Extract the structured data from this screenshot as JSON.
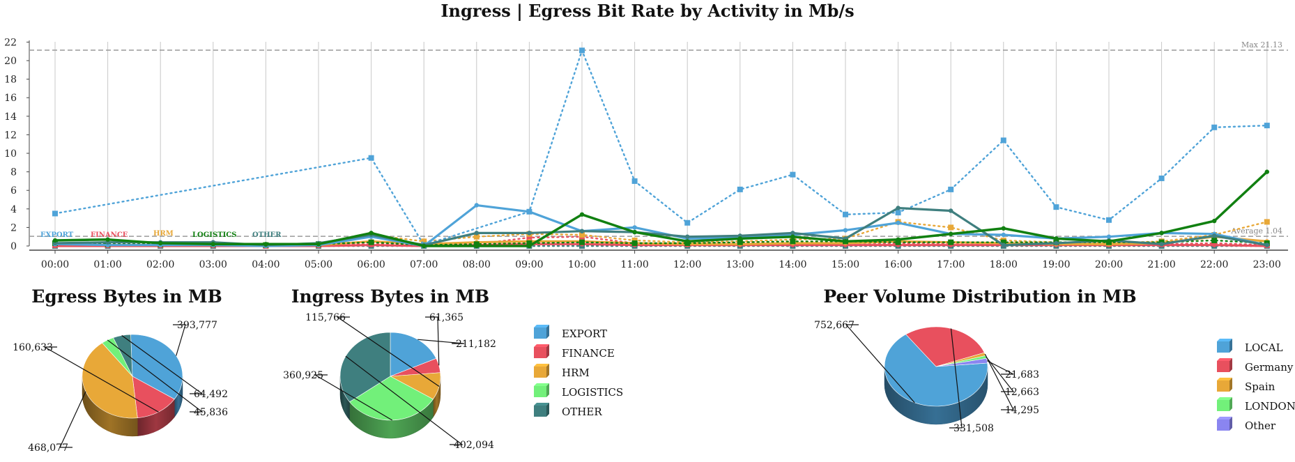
{
  "colors": {
    "EXPORT": "#4fa3d8",
    "FINANCE": "#e8505e",
    "HRM": "#e8a838",
    "LOGISTICS": "#72f07a",
    "OTHER": "#3f7f7f",
    "LOGISTICS_line": "#118011",
    "LOCAL": "#4fa3d8",
    "Germany": "#e8505e",
    "Spain": "#e8a838",
    "LONDON": "#72f07a",
    "Other": "#8a85f0"
  },
  "chart_data": [
    {
      "type": "line",
      "title": "Ingress | Egress Bit Rate by Activity in Mb/s",
      "xlabel": "",
      "ylabel": "",
      "ylim": [
        0,
        22
      ],
      "yticks": [
        0,
        2,
        4,
        6,
        8,
        10,
        12,
        14,
        16,
        18,
        20,
        22
      ],
      "grid": "vertical",
      "categories": [
        "00:00",
        "01:00",
        "02:00",
        "03:00",
        "04:00",
        "05:00",
        "06:00",
        "07:00",
        "08:00",
        "09:00",
        "10:00",
        "11:00",
        "12:00",
        "13:00",
        "14:00",
        "15:00",
        "16:00",
        "17:00",
        "18:00",
        "19:00",
        "20:00",
        "21:00",
        "22:00",
        "23:00"
      ],
      "legend_labels": [
        "EXPORT",
        "FINANCE",
        "HRM",
        "LOGISTICS",
        "OTHER"
      ],
      "max_line": {
        "label": "Max 21.13",
        "value": 21.13
      },
      "average_line": {
        "label": "Average 1.04",
        "value": 1.04
      },
      "series": [
        {
          "name": "EXPORT",
          "style": "dotted",
          "color_key": "EXPORT",
          "values": [
            3.5,
            null,
            null,
            null,
            null,
            null,
            9.5,
            0.1,
            null,
            3.7,
            21.1,
            7.0,
            2.5,
            6.1,
            7.7,
            3.4,
            3.6,
            6.1,
            11.4,
            4.2,
            2.8,
            7.3,
            12.8,
            13.0
          ]
        },
        {
          "name": "EXPORT",
          "style": "solid",
          "color_key": "EXPORT",
          "values": [
            0.2,
            0.1,
            0.1,
            0.1,
            0.0,
            0.1,
            1.0,
            0.0,
            4.4,
            3.7,
            1.6,
            2.0,
            0.8,
            0.9,
            1.2,
            1.7,
            2.5,
            1.3,
            1.2,
            0.8,
            1.0,
            1.4,
            1.3,
            0.1
          ]
        },
        {
          "name": "FINANCE",
          "style": "dotted",
          "color_key": "FINANCE",
          "values": [
            0.1,
            0.1,
            0.1,
            0.1,
            0.0,
            0.1,
            0.2,
            0.1,
            0.2,
            0.9,
            1.0,
            0.3,
            0.2,
            0.3,
            0.3,
            0.3,
            0.3,
            0.3,
            0.3,
            0.3,
            0.2,
            0.2,
            0.3,
            0.1
          ]
        },
        {
          "name": "FINANCE",
          "style": "solid",
          "color_key": "FINANCE",
          "values": [
            0.0,
            0.0,
            0.0,
            0.0,
            0.0,
            0.0,
            0.1,
            0.0,
            0.1,
            0.2,
            0.2,
            0.1,
            0.1,
            0.1,
            0.1,
            0.1,
            0.1,
            0.1,
            0.1,
            0.1,
            0.1,
            0.1,
            0.1,
            0.0
          ]
        },
        {
          "name": "HRM",
          "style": "dotted",
          "color_key": "HRM",
          "values": [
            0.3,
            0.2,
            0.2,
            0.2,
            0.1,
            0.2,
            1.2,
            0.5,
            1.0,
            1.3,
            1.2,
            0.6,
            0.4,
            0.5,
            0.7,
            0.8,
            2.6,
            2.0,
            0.6,
            0.4,
            0.3,
            0.5,
            1.2,
            2.6
          ]
        },
        {
          "name": "HRM",
          "style": "solid",
          "color_key": "HRM",
          "values": [
            0.2,
            0.1,
            0.1,
            0.1,
            0.0,
            0.1,
            0.5,
            0.2,
            0.4,
            0.5,
            0.5,
            0.3,
            0.2,
            0.2,
            0.3,
            0.3,
            0.5,
            0.4,
            0.3,
            0.2,
            0.2,
            0.3,
            1.0,
            0.5
          ]
        },
        {
          "name": "LOGISTICS",
          "style": "dotted",
          "color_key": "LOGISTICS_line",
          "values": [
            0.3,
            0.2,
            0.2,
            0.2,
            0.1,
            0.2,
            0.4,
            0.1,
            0.2,
            0.3,
            0.4,
            0.3,
            0.3,
            0.4,
            0.5,
            0.5,
            0.4,
            0.4,
            0.4,
            0.4,
            0.4,
            0.4,
            0.6,
            0.3
          ]
        },
        {
          "name": "LOGISTICS",
          "style": "solid",
          "color_key": "LOGISTICS_line",
          "values": [
            0.6,
            0.7,
            0.3,
            0.2,
            0.2,
            0.2,
            1.4,
            0.0,
            0.0,
            0.0,
            3.4,
            1.5,
            0.5,
            0.8,
            1.0,
            0.5,
            0.7,
            1.3,
            1.9,
            0.8,
            0.5,
            1.4,
            2.7,
            8.0
          ]
        },
        {
          "name": "OTHER",
          "style": "dotted",
          "color_key": "OTHER",
          "values": [
            0.0,
            0.0,
            0.0,
            0.0,
            0.0,
            0.0,
            0.0,
            0.0,
            0.0,
            0.0,
            0.0,
            0.0,
            0.0,
            0.0,
            0.0,
            0.0,
            0.0,
            0.0,
            0.0,
            0.0,
            0.0,
            0.0,
            0.0,
            0.0
          ]
        },
        {
          "name": "OTHER",
          "style": "solid",
          "color_key": "OTHER",
          "values": [
            0.3,
            0.4,
            0.4,
            0.4,
            0.1,
            0.3,
            1.2,
            0.1,
            1.4,
            1.4,
            1.6,
            1.5,
            1.0,
            1.1,
            1.4,
            0.8,
            4.1,
            3.8,
            0.1,
            0.3,
            0.6,
            0.2,
            1.1,
            0.1
          ]
        }
      ]
    },
    {
      "type": "pie",
      "title": "Egress Bytes in MB",
      "labels": [
        "EXPORT",
        "FINANCE",
        "HRM",
        "LOGISTICS",
        "OTHER"
      ],
      "values": [
        393777,
        160633,
        468077,
        45836,
        64492
      ],
      "value_labels": [
        "393,777",
        "160,633",
        "468,077",
        "45,836",
        "64,492"
      ]
    },
    {
      "type": "pie",
      "title": "Ingress Bytes in MB",
      "labels": [
        "EXPORT",
        "FINANCE",
        "HRM",
        "LOGISTICS",
        "OTHER"
      ],
      "values": [
        211182,
        61365,
        115766,
        360925,
        402094
      ],
      "value_labels": [
        "211,182",
        "61,365",
        "115,766",
        "360,925",
        "402,094"
      ],
      "legend": [
        "EXPORT",
        "FINANCE",
        "HRM",
        "LOGISTICS",
        "OTHER"
      ]
    },
    {
      "type": "pie",
      "title": "Peer Volume Distribution in MB",
      "labels": [
        "LOCAL",
        "Germany",
        "Spain",
        "LONDON",
        "Other"
      ],
      "values": [
        752667,
        331508,
        14295,
        12663,
        21683
      ],
      "value_labels": [
        "752,667",
        "331,508",
        "14,295",
        "12,663",
        "21,683"
      ],
      "legend": [
        "LOCAL",
        "Germany",
        "Spain",
        "LONDON",
        "Other"
      ]
    }
  ]
}
